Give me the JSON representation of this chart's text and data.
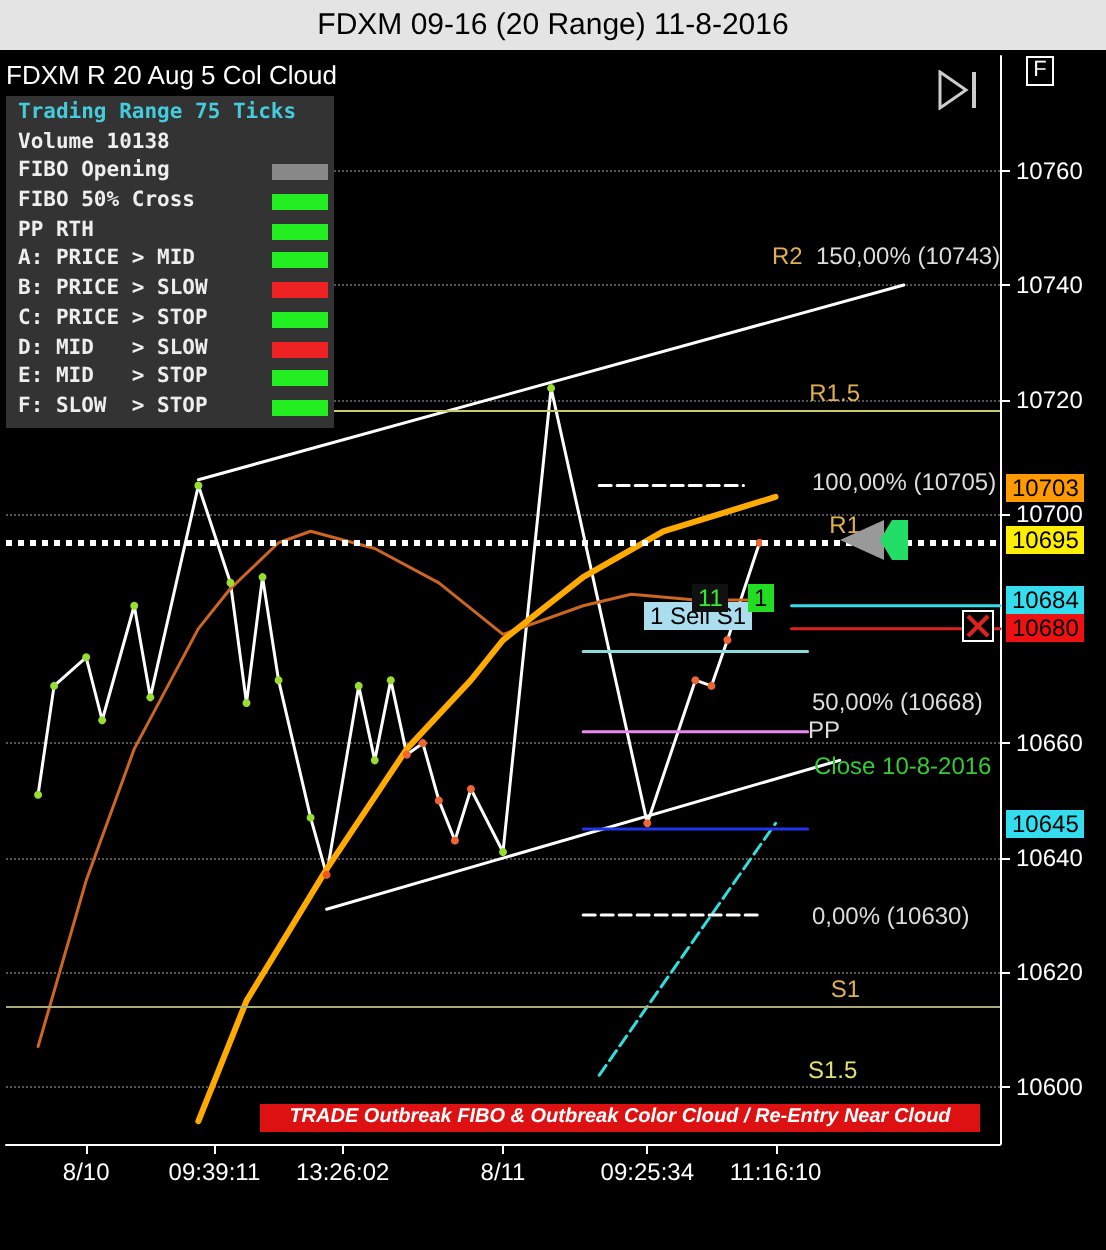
{
  "chart_data": {
    "type": "line",
    "title": "FDXM 09-16 (20 Range) 11-8-2016",
    "subtitle": "FDXM R 20 Aug 5  Col Cloud",
    "categories": [
      null,
      null,
      null,
      null,
      null,
      "8/10",
      null,
      null,
      null,
      null,
      null,
      null,
      null,
      "09:39:11",
      null,
      null,
      null,
      null,
      null,
      null,
      null,
      "13:26:02",
      null,
      null,
      null,
      null,
      null,
      null,
      null,
      null,
      null,
      "8/11",
      null,
      null,
      null,
      null,
      null,
      null,
      null,
      null,
      "09:25:34",
      null,
      null,
      null,
      null,
      null,
      null,
      null,
      "11:16:10",
      null,
      null,
      null,
      null,
      null,
      null,
      null,
      null,
      null,
      null,
      null,
      null,
      null,
      null
    ],
    "ylim": [
      10590,
      10780
    ],
    "yticks": [
      10600,
      10620,
      10640,
      10660,
      10700,
      10720,
      10740,
      10760
    ],
    "grid": "y",
    "series": [
      {
        "color": "#ffffff",
        "marker": "circle",
        "values": [
          null,
          null,
          10651,
          10670,
          null,
          10675,
          10664,
          null,
          10684,
          10668,
          null,
          null,
          10705,
          null,
          10688,
          10667,
          10689,
          10671,
          null,
          10647,
          10637,
          null,
          10670,
          10657,
          10671,
          10658,
          10660,
          10650,
          10643,
          10652,
          null,
          10641,
          null,
          null,
          10722,
          null,
          null,
          null,
          null,
          null,
          10646,
          null,
          null,
          10671,
          10670,
          10678,
          null,
          10695,
          null,
          null,
          null,
          null,
          null,
          null,
          null,
          null,
          null,
          null,
          null,
          null,
          null,
          null,
          null
        ],
        "colors": [
          null,
          null,
          "#99dd33",
          "#99dd33",
          null,
          "#99dd33",
          "#99dd33",
          null,
          "#99dd33",
          "#99dd33",
          null,
          null,
          "#99dd33",
          null,
          "#99dd33",
          "#99dd33",
          "#99dd33",
          "#99dd33",
          null,
          "#99dd33",
          "#ee5522",
          null,
          "#99dd33",
          "#99dd33",
          "#99dd33",
          "#ee6633",
          "#ee6633",
          "#ee6633",
          "#ee6633",
          "#ee6633",
          null,
          "#99dd33",
          null,
          null,
          "#99dd33",
          null,
          null,
          null,
          null,
          null,
          "#ee6633",
          null,
          null,
          "#ee6633",
          "#ee6633",
          "#ee6633",
          null,
          "#ee6633",
          null,
          null,
          null,
          null,
          null,
          null,
          null,
          null,
          null,
          null,
          null,
          null,
          null,
          null,
          null
        ]
      },
      {
        "color": "#cc6622",
        "marker": "none",
        "values": [
          null,
          null,
          10607,
          null,
          null,
          10636,
          null,
          null,
          10659,
          null,
          null,
          null,
          10680,
          null,
          10687,
          null,
          null,
          10695,
          null,
          10697,
          null,
          null,
          null,
          10694,
          null,
          null,
          null,
          10688,
          null,
          null,
          null,
          10679,
          null,
          null,
          null,
          null,
          10684,
          null,
          null,
          10686,
          null,
          null,
          null,
          10685,
          null,
          null,
          null,
          10685,
          null,
          null,
          null,
          null,
          null,
          null,
          null,
          null,
          null,
          null,
          null,
          null,
          null,
          null,
          null
        ]
      },
      {
        "color": "#ffaa00",
        "marker": "none",
        "values": [
          null,
          null,
          null,
          null,
          null,
          null,
          null,
          null,
          null,
          null,
          null,
          null,
          10594,
          null,
          null,
          10615,
          null,
          null,
          null,
          null,
          10638,
          null,
          null,
          null,
          null,
          10659,
          null,
          null,
          null,
          10671,
          null,
          10678,
          null,
          null,
          null,
          null,
          10689,
          null,
          null,
          null,
          null,
          10697,
          null,
          null,
          null,
          null,
          null,
          null,
          10703,
          null,
          null,
          null,
          null,
          null,
          null,
          null,
          null,
          null,
          null,
          null,
          null,
          null,
          null
        ]
      },
      {
        "color": "#ffffff",
        "marker": "none",
        "values": [
          null,
          null,
          null,
          null,
          null,
          null,
          null,
          null,
          null,
          null,
          null,
          null,
          10706,
          null,
          null,
          null,
          null,
          null,
          null,
          null,
          null,
          null,
          null,
          null,
          null,
          null,
          null,
          null,
          null,
          null,
          null,
          null,
          null,
          null,
          null,
          null,
          null,
          null,
          null,
          null,
          null,
          null,
          null,
          null,
          null,
          null,
          null,
          null,
          null,
          null,
          null,
          null,
          null,
          null,
          null,
          null,
          10740,
          null,
          null,
          null,
          null,
          null,
          null
        ]
      },
      {
        "color": "#ffffff",
        "marker": "none",
        "values": [
          null,
          null,
          null,
          null,
          null,
          null,
          null,
          null,
          null,
          null,
          null,
          null,
          null,
          null,
          null,
          null,
          null,
          null,
          null,
          null,
          10631,
          null,
          null,
          null,
          null,
          null,
          null,
          null,
          null,
          null,
          null,
          null,
          null,
          null,
          null,
          null,
          null,
          null,
          null,
          null,
          null,
          null,
          null,
          null,
          null,
          null,
          null,
          null,
          null,
          null,
          null,
          null,
          10657,
          null,
          null,
          null,
          null,
          null,
          null,
          null,
          null,
          null,
          null
        ]
      },
      {
        "color": "#33dddd",
        "marker": "none",
        "line_style": "dashed",
        "values": [
          null,
          null,
          null,
          null,
          null,
          null,
          null,
          null,
          null,
          null,
          null,
          null,
          null,
          null,
          null,
          null,
          null,
          null,
          null,
          null,
          null,
          null,
          null,
          null,
          null,
          null,
          null,
          null,
          null,
          null,
          null,
          null,
          null,
          null,
          null,
          null,
          null,
          10602,
          null,
          null,
          null,
          null,
          null,
          null,
          null,
          null,
          null,
          null,
          10646,
          null,
          null,
          null,
          null,
          null,
          null,
          null,
          null,
          null,
          null,
          null,
          null,
          null,
          null
        ]
      },
      {
        "color": "#ffffff",
        "marker": "none",
        "line_style": "dashed",
        "values": [
          null,
          null,
          null,
          null,
          null,
          null,
          null,
          null,
          null,
          null,
          null,
          null,
          null,
          null,
          null,
          null,
          null,
          null,
          null,
          null,
          null,
          null,
          null,
          null,
          null,
          null,
          null,
          null,
          null,
          null,
          null,
          null,
          null,
          null,
          null,
          null,
          null,
          10705,
          null,
          null,
          null,
          null,
          null,
          null,
          null,
          null,
          10705,
          null,
          null,
          null,
          null,
          null,
          null,
          null,
          null,
          null,
          null,
          null,
          null,
          null,
          null,
          null,
          null
        ]
      },
      {
        "color": "#ffffff",
        "marker": "none",
        "line_style": "dashed",
        "values": [
          null,
          null,
          null,
          null,
          null,
          null,
          null,
          null,
          null,
          null,
          null,
          null,
          null,
          null,
          null,
          null,
          null,
          null,
          null,
          null,
          null,
          null,
          null,
          null,
          null,
          null,
          null,
          null,
          null,
          null,
          null,
          null,
          null,
          null,
          null,
          null,
          10630,
          null,
          null,
          null,
          null,
          null,
          null,
          null,
          null,
          null,
          null,
          10630,
          null,
          null,
          null,
          null,
          null,
          null,
          null,
          null,
          null,
          null,
          null,
          null,
          null,
          null,
          null
        ]
      },
      {
        "color": "#ee88ee",
        "marker": "none",
        "values": [
          null,
          null,
          null,
          null,
          null,
          null,
          null,
          null,
          null,
          null,
          null,
          null,
          null,
          null,
          null,
          null,
          null,
          null,
          null,
          null,
          null,
          null,
          null,
          null,
          null,
          null,
          null,
          null,
          null,
          null,
          null,
          null,
          null,
          null,
          null,
          null,
          10662,
          null,
          null,
          null,
          null,
          null,
          null,
          null,
          null,
          null,
          null,
          null,
          null,
          null,
          10662,
          null,
          null,
          null,
          null,
          null,
          null,
          null,
          null,
          null,
          null,
          null,
          null
        ]
      },
      {
        "color": "#88dddd",
        "marker": "none",
        "values": [
          null,
          null,
          null,
          null,
          null,
          null,
          null,
          null,
          null,
          null,
          null,
          null,
          null,
          null,
          null,
          null,
          null,
          null,
          null,
          null,
          null,
          null,
          null,
          null,
          null,
          null,
          null,
          null,
          null,
          null,
          null,
          null,
          null,
          null,
          null,
          null,
          10676,
          null,
          null,
          null,
          null,
          null,
          null,
          null,
          null,
          null,
          null,
          null,
          null,
          null,
          10676,
          null,
          null,
          null,
          null,
          null,
          null,
          null,
          null,
          null,
          null,
          null,
          null
        ]
      },
      {
        "color": "#2233ee",
        "marker": "none",
        "values": [
          null,
          null,
          null,
          null,
          null,
          null,
          null,
          null,
          null,
          null,
          null,
          null,
          null,
          null,
          null,
          null,
          null,
          null,
          null,
          null,
          null,
          null,
          null,
          null,
          null,
          null,
          null,
          null,
          null,
          null,
          null,
          null,
          null,
          null,
          null,
          null,
          10645,
          null,
          null,
          null,
          null,
          null,
          null,
          null,
          null,
          null,
          null,
          null,
          null,
          null,
          10645,
          null,
          null,
          null,
          null,
          null,
          null,
          null,
          null,
          null,
          null,
          null,
          null
        ]
      },
      {
        "color": "#33ddee",
        "marker": "none",
        "values": [
          null,
          null,
          null,
          null,
          null,
          null,
          null,
          null,
          null,
          null,
          null,
          null,
          null,
          null,
          null,
          null,
          null,
          null,
          null,
          null,
          null,
          null,
          null,
          null,
          null,
          null,
          null,
          null,
          null,
          null,
          null,
          null,
          null,
          null,
          null,
          null,
          null,
          null,
          null,
          null,
          null,
          null,
          null,
          null,
          null,
          null,
          null,
          null,
          null,
          10684,
          null,
          null,
          null,
          null,
          null,
          null,
          null,
          null,
          null,
          null,
          null,
          null,
          10684
        ]
      },
      {
        "color": "#dd2222",
        "marker": "none",
        "values": [
          null,
          null,
          null,
          null,
          null,
          null,
          null,
          null,
          null,
          null,
          null,
          null,
          null,
          null,
          null,
          null,
          null,
          null,
          null,
          null,
          null,
          null,
          null,
          null,
          null,
          null,
          null,
          null,
          null,
          null,
          null,
          null,
          null,
          null,
          null,
          null,
          null,
          null,
          null,
          null,
          null,
          null,
          null,
          null,
          null,
          null,
          null,
          null,
          null,
          10680,
          null,
          null,
          null,
          null,
          null,
          null,
          null,
          null,
          null,
          null,
          null,
          null,
          10680
        ]
      }
    ],
    "ref_lines": [
      {
        "axis": "y",
        "value": 10718,
        "label": "R1.5",
        "color": "#cccc66"
      },
      {
        "axis": "y",
        "value": 10695,
        "label": "R1",
        "color": "#ffffff",
        "line_style": "dotted"
      },
      {
        "axis": "y",
        "value": 10614,
        "label": "S1",
        "color": "#aaaa77"
      }
    ],
    "annotations": [
      "Trading Range 75 Ticks",
      "Volume 10138",
      "FIBO Opening",
      "FIBO 50% Cross",
      "PP RTH",
      "A: PRICE > MID",
      "B: PRICE > SLOW",
      "C: PRICE > STOP",
      "D: MID   > SLOW",
      "E: MID   > STOP",
      "F: SLOW  > STOP",
      "TRADE  Outbreak FIBO & Outbreak Color Cloud / Re-Entry Near Cloud",
      "F",
      "R2",
      "150,00% (10743)",
      "100,00% (10705)",
      "50,00% (10668)",
      "0,00% (10630)",
      "PP",
      "S1.5",
      "Close 10-8-2016",
      "10703",
      "10645",
      "1 Sell S1",
      "11",
      "1",
      "10695",
      "10684",
      "10680"
    ]
  }
}
